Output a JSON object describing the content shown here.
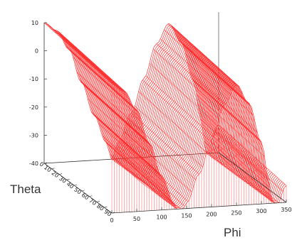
{
  "chart_data": {
    "type": "surface",
    "title": "",
    "xlabel": "Phi",
    "ylabel": "Theta",
    "zlabel": "",
    "x_ticks": [
      "0",
      "50",
      "100",
      "150",
      "200",
      "250",
      "300",
      "350"
    ],
    "y_ticks": [
      "0",
      "10",
      "20",
      "30",
      "40",
      "50",
      "60",
      "70",
      "80",
      "90"
    ],
    "z_ticks": [
      "10",
      "0",
      "-10",
      "-20",
      "-30",
      "-40"
    ],
    "xlim": [
      0,
      350
    ],
    "ylim": [
      0,
      90
    ],
    "zlim": [
      -40,
      10
    ],
    "color": "#ff2a2a",
    "style": "wireframe",
    "surface_x": [
      0,
      25,
      50,
      75,
      100,
      125,
      135,
      150,
      175,
      200,
      225,
      250,
      275,
      300,
      315,
      325,
      350
    ],
    "surface_z_at_theta_0": [
      10,
      7,
      0,
      -12,
      -24,
      -34,
      -40,
      -34,
      -24,
      -12,
      0,
      7,
      0,
      -14,
      -28,
      -40,
      -30
    ]
  }
}
